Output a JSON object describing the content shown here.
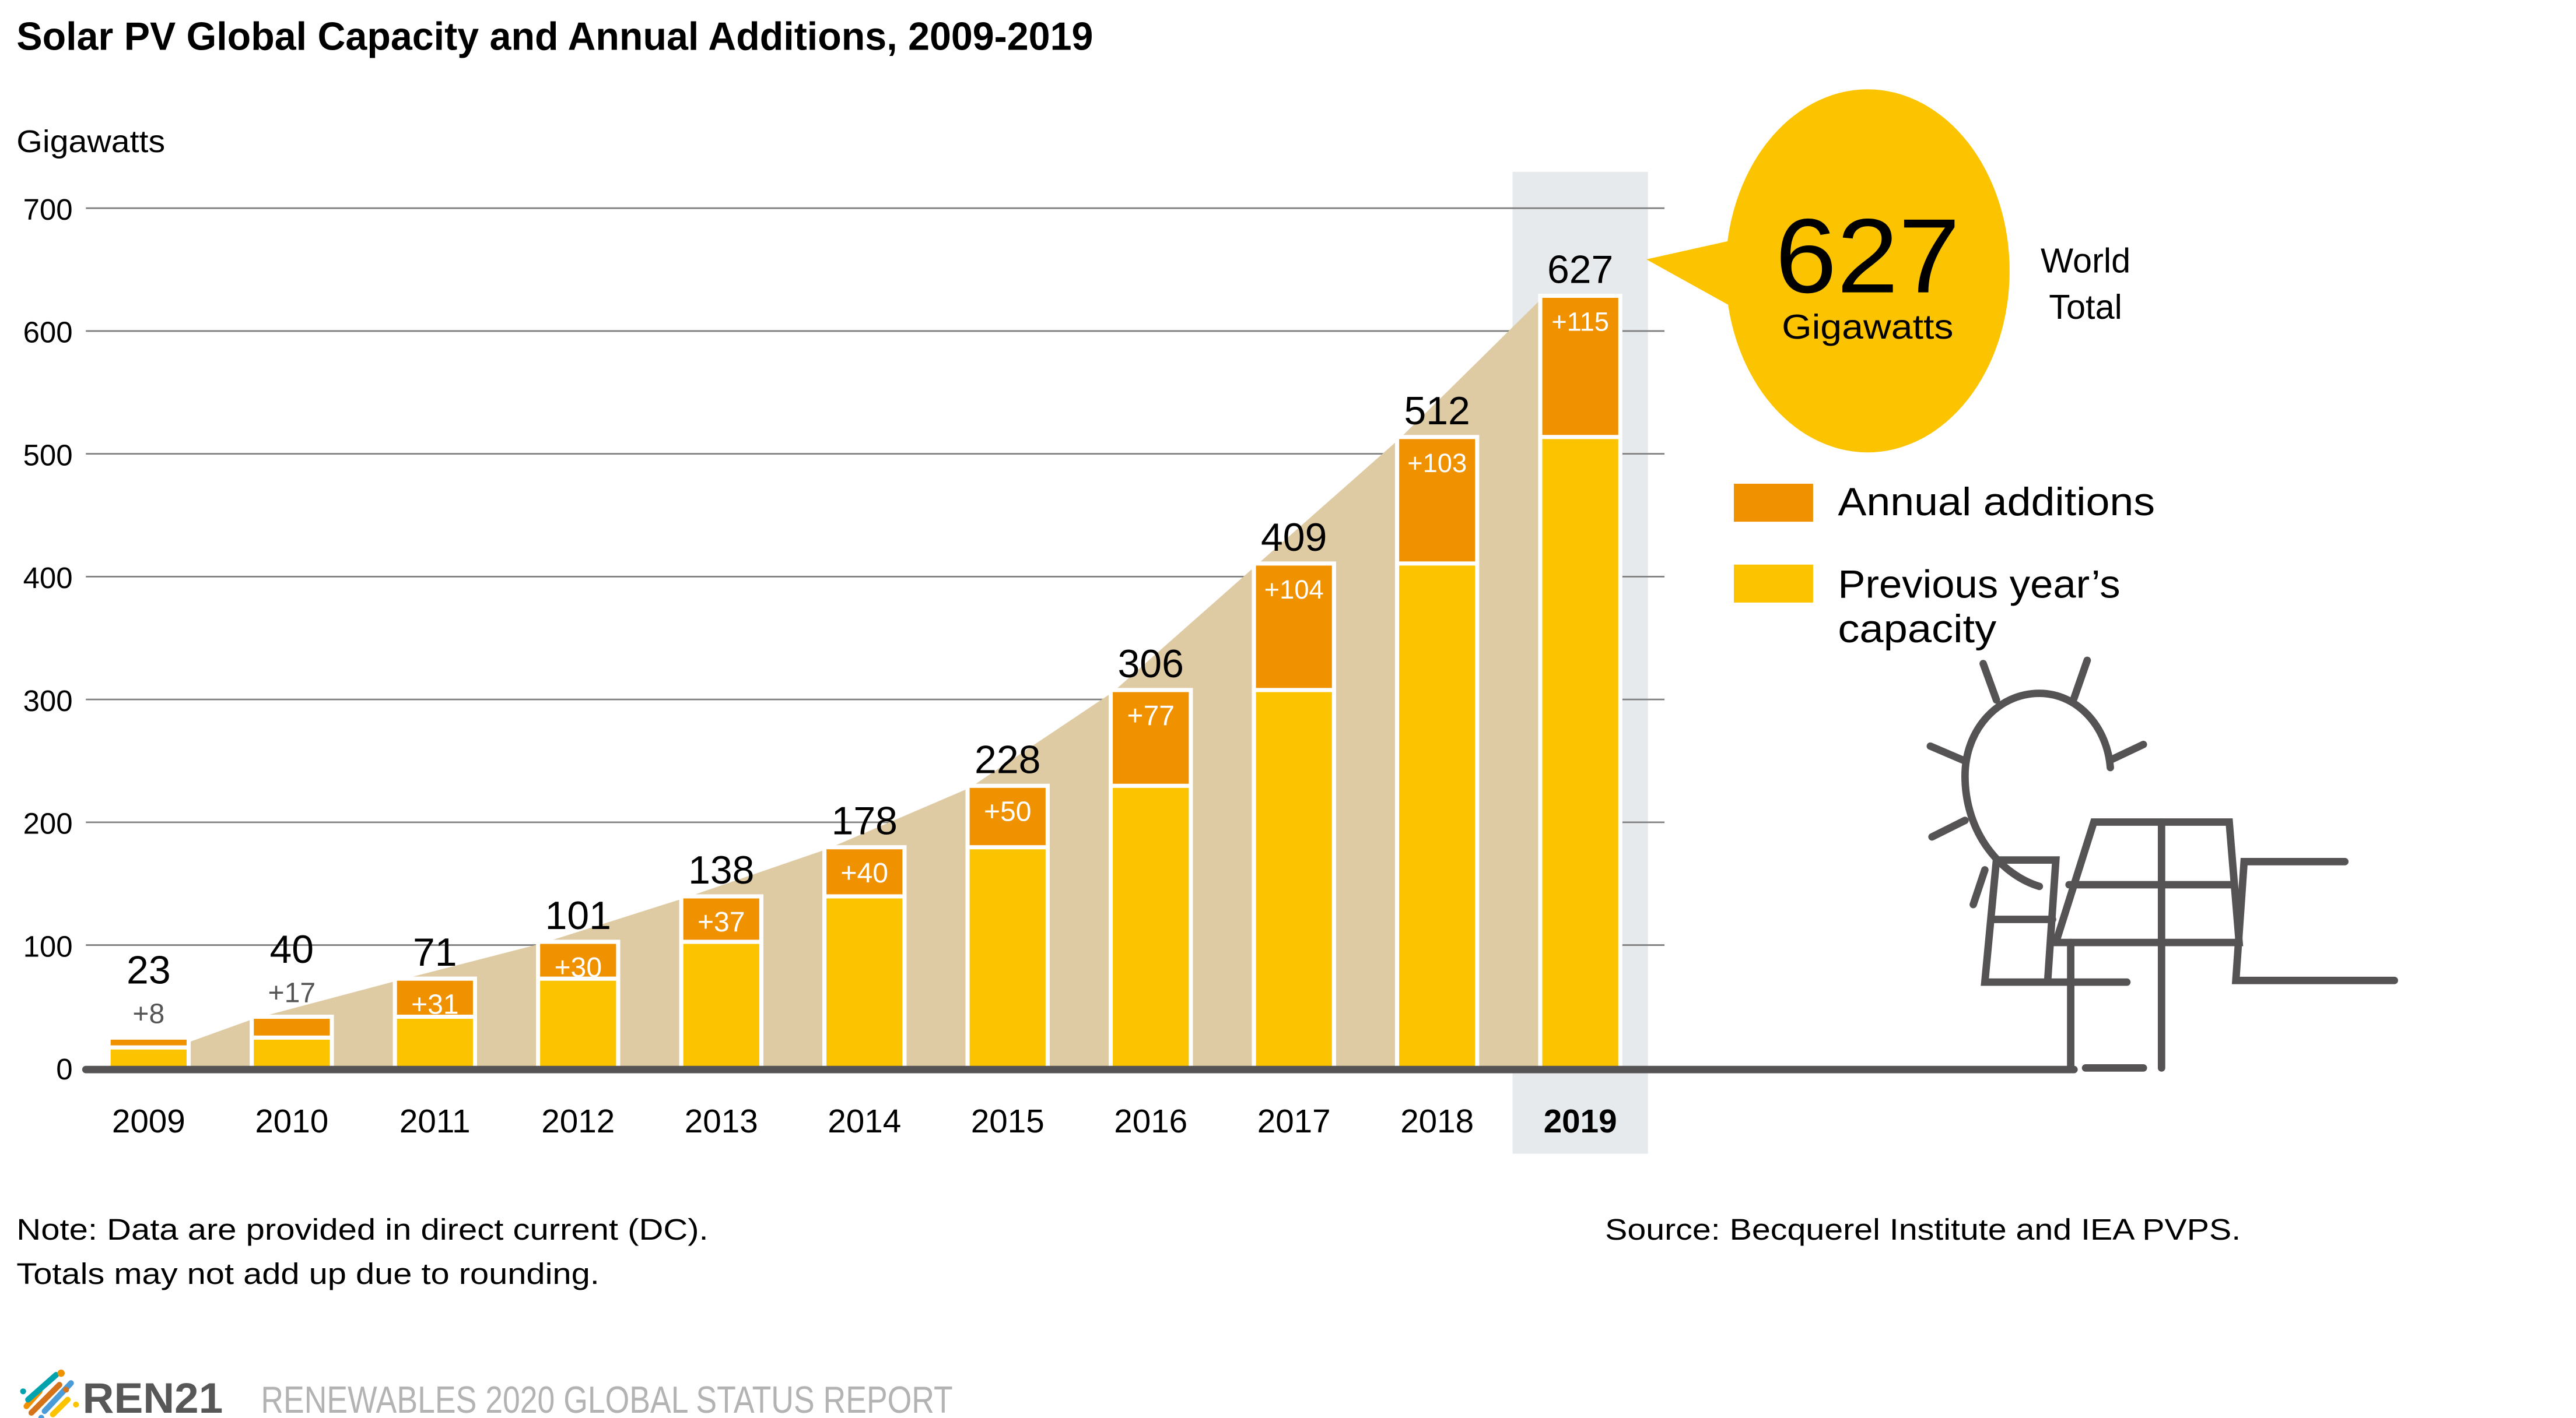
{
  "title": "Solar PV Global Capacity and Annual Additions, 2009-2019",
  "colors": {
    "annual_additions": "#F09200",
    "previous_capacity": "#FCC400",
    "area_fill": "#DFCBA3",
    "highlight_band": "#E7EAED",
    "grid": "#808080",
    "axis": "#555354",
    "icon": "#555354",
    "bubble": "#FCC400"
  },
  "callout": {
    "value": "627",
    "unit": "Gigawatts",
    "label_line1": "World",
    "label_line2": "Total"
  },
  "legend": {
    "items": [
      {
        "label": "Annual additions",
        "color_key": "annual_additions"
      },
      {
        "label_line1": "Previous year’s",
        "label_line2": "capacity",
        "color_key": "previous_capacity"
      }
    ],
    "placement": "right"
  },
  "notes": {
    "note_line1": "Note: Data are provided in direct current (DC).",
    "note_line2": "Totals may not add up due to rounding.",
    "source": "Source: Becquerel Institute and IEA PVPS."
  },
  "footer": {
    "logo_text": "REN21",
    "report_title": "RENEWABLES 2020 GLOBAL STATUS REPORT"
  },
  "icons": {
    "solar_panel": "solar-panel-with-sun-icon",
    "logo": "ren21-logo-icon"
  },
  "chart_data": {
    "type": "bar",
    "stacked": true,
    "title": "Solar PV Global Capacity and Annual Additions, 2009-2019",
    "xlabel": "",
    "ylabel": "Gigawatts",
    "ylim": [
      0,
      700
    ],
    "yticks": [
      0,
      100,
      200,
      300,
      400,
      500,
      600,
      700
    ],
    "grid": true,
    "highlight_category": "2019",
    "categories": [
      "2009",
      "2010",
      "2011",
      "2012",
      "2013",
      "2014",
      "2015",
      "2016",
      "2017",
      "2018",
      "2019"
    ],
    "series": [
      {
        "name": "Previous year’s capacity",
        "values": [
          15,
          23,
          40,
          71,
          101,
          138,
          178,
          228,
          306,
          409,
          512
        ]
      },
      {
        "name": "Annual additions",
        "values": [
          8,
          17,
          31,
          30,
          37,
          40,
          50,
          77,
          104,
          103,
          115
        ]
      }
    ],
    "totals": [
      23,
      40,
      71,
      101,
      138,
      178,
      228,
      306,
      409,
      512,
      627
    ],
    "total_labels": [
      "23",
      "40",
      "71",
      "101",
      "138",
      "178",
      "228",
      "306",
      "409",
      "512",
      "627"
    ],
    "addition_labels": [
      "+8",
      "+17",
      "+31",
      "+30",
      "+37",
      "+40",
      "+50",
      "+77",
      "+104",
      "+103",
      "+115"
    ]
  }
}
